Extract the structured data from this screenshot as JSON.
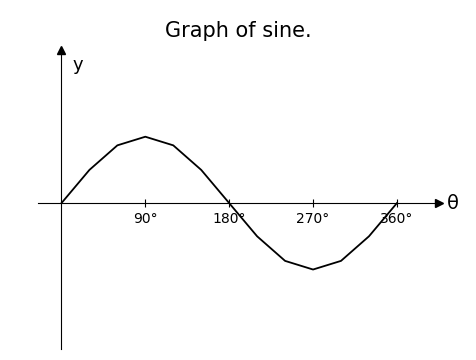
{
  "chart_data": {
    "type": "line",
    "title": "Graph of sine.",
    "x_label": "θ",
    "y_label": "y",
    "x": [
      0,
      30,
      60,
      90,
      120,
      150,
      180,
      210,
      240,
      270,
      300,
      330,
      360
    ],
    "values": [
      0,
      0.5,
      0.87,
      1,
      0.87,
      0.5,
      0,
      -0.5,
      -0.87,
      -1,
      -0.87,
      -0.5,
      0
    ],
    "color": "#000000",
    "xlim": [
      -25,
      405
    ],
    "ylim": [
      -2.2,
      2.3
    ],
    "xticks": [
      {
        "value": 90,
        "label": "90°"
      },
      {
        "value": 180,
        "label": "180°"
      },
      {
        "value": 270,
        "label": "270°"
      },
      {
        "value": 360,
        "label": "360°"
      }
    ],
    "tick_labels": "x"
  }
}
